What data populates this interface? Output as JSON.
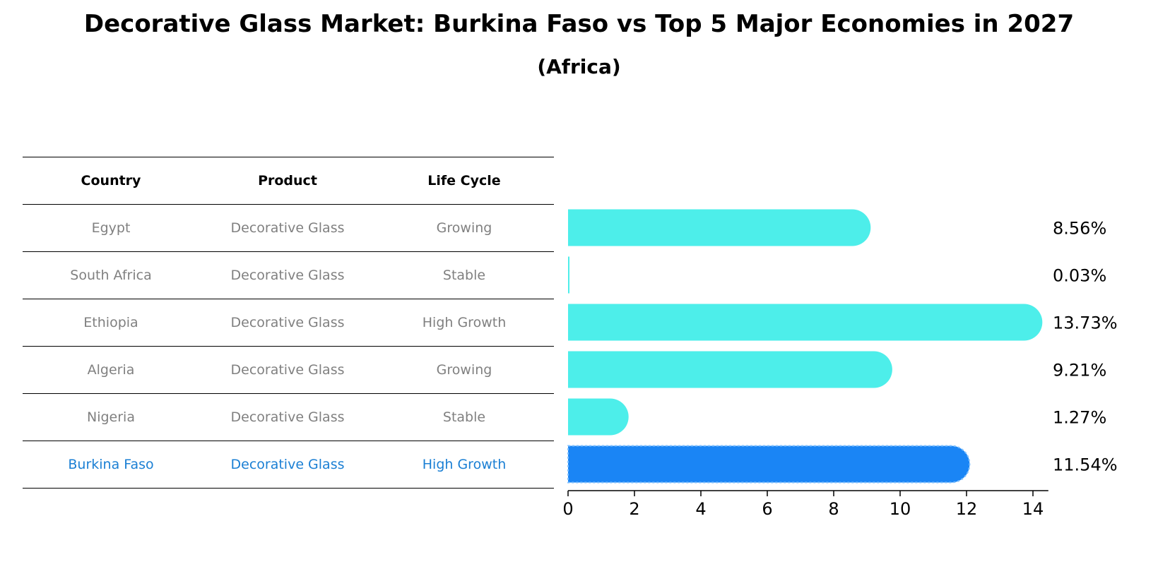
{
  "title": "Decorative Glass Market: Burkina Faso vs Top 5 Major Economies in 2027",
  "subtitle": "(Africa)",
  "table": {
    "headers": [
      "Country",
      "Product",
      "Life Cycle"
    ],
    "rows": [
      {
        "country": "Egypt",
        "product": "Decorative Glass",
        "life_cycle": "Growing"
      },
      {
        "country": "South Africa",
        "product": "Decorative Glass",
        "life_cycle": "Stable"
      },
      {
        "country": "Ethiopia",
        "product": "Decorative Glass",
        "life_cycle": "High Growth"
      },
      {
        "country": "Algeria",
        "product": "Decorative Glass",
        "life_cycle": "Growing"
      },
      {
        "country": "Nigeria",
        "product": "Decorative Glass",
        "life_cycle": "Stable"
      },
      {
        "country": "Burkina Faso",
        "product": "Decorative Glass",
        "life_cycle": "High Growth"
      }
    ]
  },
  "chart_data": {
    "type": "bar",
    "orientation": "horizontal",
    "title": "Decorative Glass Market: Burkina Faso vs Top 5 Major Economies in 2027",
    "subtitle": "(Africa)",
    "categories": [
      "Egypt",
      "South Africa",
      "Ethiopia",
      "Algeria",
      "Nigeria",
      "Burkina Faso"
    ],
    "values": [
      8.56,
      0.03,
      13.73,
      9.21,
      1.27,
      11.54
    ],
    "value_labels": [
      "8.56%",
      "0.03%",
      "13.73%",
      "9.21%",
      "1.27%",
      "11.54%"
    ],
    "highlight": "Burkina Faso",
    "xlim": [
      0,
      14.4
    ],
    "xticks": [
      0,
      2,
      4,
      6,
      8,
      10,
      12,
      14
    ],
    "xtick_labels": [
      "0",
      "2",
      "4",
      "6",
      "8",
      "10",
      "12",
      "14"
    ],
    "xlabel": "",
    "ylabel": "",
    "grid": false
  },
  "colors": {
    "bar": "#4deeea",
    "highlight_bar": "#1a85f5",
    "table_text": "#808080",
    "highlight_text": "#1a7fd4"
  }
}
